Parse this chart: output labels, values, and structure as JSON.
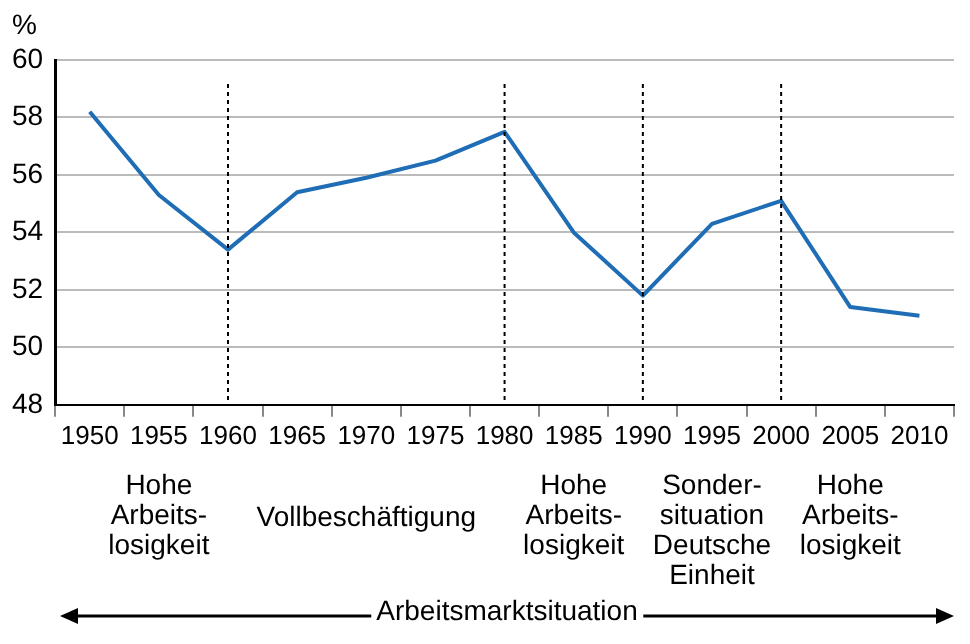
{
  "chart_data": {
    "type": "line",
    "ylabel": "%",
    "categories": [
      "1950",
      "1955",
      "1960",
      "1965",
      "1970",
      "1975",
      "1980",
      "1985",
      "1990",
      "1995",
      "2000",
      "2005",
      "2010"
    ],
    "series": [
      {
        "color": "#1f6db5",
        "values": [
          58.2,
          55.3,
          53.4,
          55.4,
          55.9,
          56.5,
          57.5,
          54.0,
          51.8,
          54.3,
          55.1,
          51.4,
          51.1
        ]
      }
    ],
    "ylim": [
      48,
      60
    ],
    "yticks": [
      48,
      50,
      52,
      54,
      56,
      58,
      60
    ],
    "grid": "y",
    "legend": false,
    "marker": "none",
    "line_style": "solid",
    "ref_lines": [
      {
        "axis": "x",
        "value": "1960",
        "color": "#000000",
        "line_style": "dotted"
      },
      {
        "axis": "x",
        "value": "1980",
        "color": "#000000",
        "line_style": "dotted"
      },
      {
        "axis": "x",
        "value": "1990",
        "color": "#000000",
        "line_style": "dotted"
      },
      {
        "axis": "x",
        "value": "2000",
        "color": "#000000",
        "line_style": "dotted"
      }
    ],
    "annotations": [
      "Hohe\nArbeits-\nlosigkeit",
      "Vollbeschäftigung",
      "Hohe\nArbeits-\nlosigkeit",
      "Sonder-\nsituation\nDeutsche\nEinheit",
      "Hohe\nArbeits-\nlosigkeit",
      "Arbeitsmarktsituation"
    ]
  }
}
